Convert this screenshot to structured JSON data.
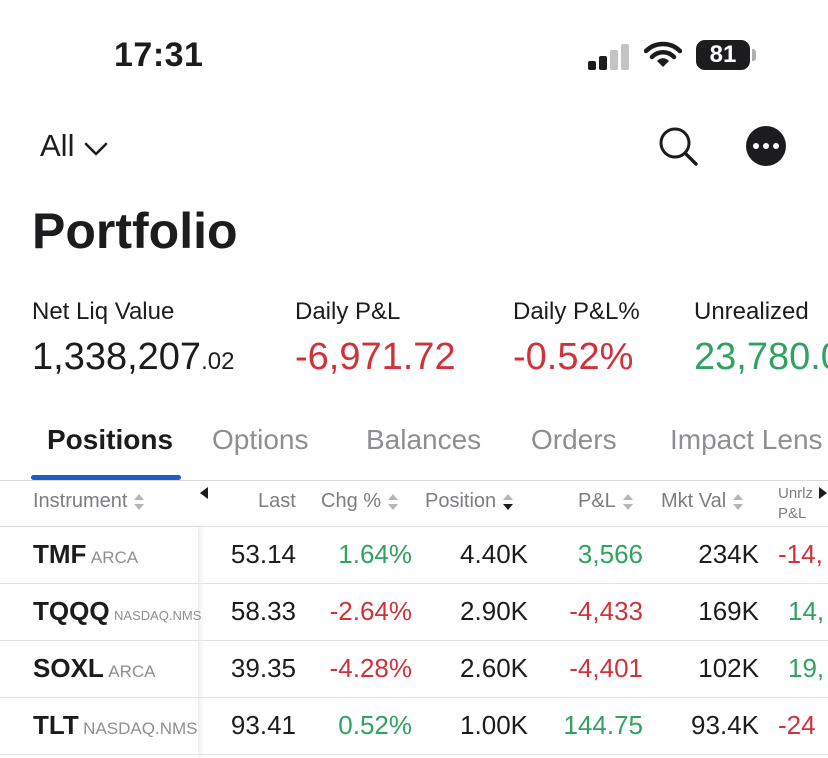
{
  "status_bar": {
    "time": "17:31",
    "battery": "81"
  },
  "header": {
    "filter_label": "All",
    "title": "Portfolio"
  },
  "summary": {
    "net_liq_label": "Net Liq Value",
    "net_liq_main": "1,338,207",
    "net_liq_cents": ".02",
    "daily_pnl_label": "Daily P&L",
    "daily_pnl_value": "-6,971.72",
    "daily_pnl_pct_label": "Daily P&L%",
    "daily_pnl_pct_value": "-0.52%",
    "unrealized_label": "Unrealized",
    "unrealized_value": "23,780.0"
  },
  "tabs": [
    "Positions",
    "Options",
    "Balances",
    "Orders",
    "Impact Lens"
  ],
  "table": {
    "headers": {
      "instrument": "Instrument",
      "last": "Last",
      "chg_pct": "Chg %",
      "position": "Position",
      "pnl": "P&L",
      "mkt_val": "Mkt Val",
      "unrlz_1": "Unrlz",
      "unrlz_2": "P&L"
    },
    "rows": [
      {
        "symbol": "TMF",
        "exchange": "ARCA",
        "last": "53.14",
        "chg": "1.64%",
        "position": "4.40K",
        "pnl": "3,566",
        "mkt_val": "234K",
        "unrlz": "-14,"
      },
      {
        "symbol": "TQQQ",
        "exchange": "NASDAQ.NMS",
        "last": "58.33",
        "chg": "-2.64%",
        "position": "2.90K",
        "pnl": "-4,433",
        "mkt_val": "169K",
        "unrlz": "14,"
      },
      {
        "symbol": "SOXL",
        "exchange": "ARCA",
        "last": "39.35",
        "chg": "-4.28%",
        "position": "2.60K",
        "pnl": "-4,401",
        "mkt_val": "102K",
        "unrlz": "19,"
      },
      {
        "symbol": "TLT",
        "exchange": "NASDAQ.NMS",
        "last": "93.41",
        "chg": "0.52%",
        "position": "1.00K",
        "pnl": "144.75",
        "mkt_val": "93.4K",
        "unrlz": "-24"
      }
    ]
  },
  "colors": {
    "negative": "#d0323a",
    "positive": "#2fa35f",
    "accent": "#1e5cc8"
  },
  "icons": [
    "signal-icon",
    "wifi-icon",
    "battery-icon",
    "chevron-down-icon",
    "search-icon",
    "more-icon",
    "sort-icon"
  ]
}
